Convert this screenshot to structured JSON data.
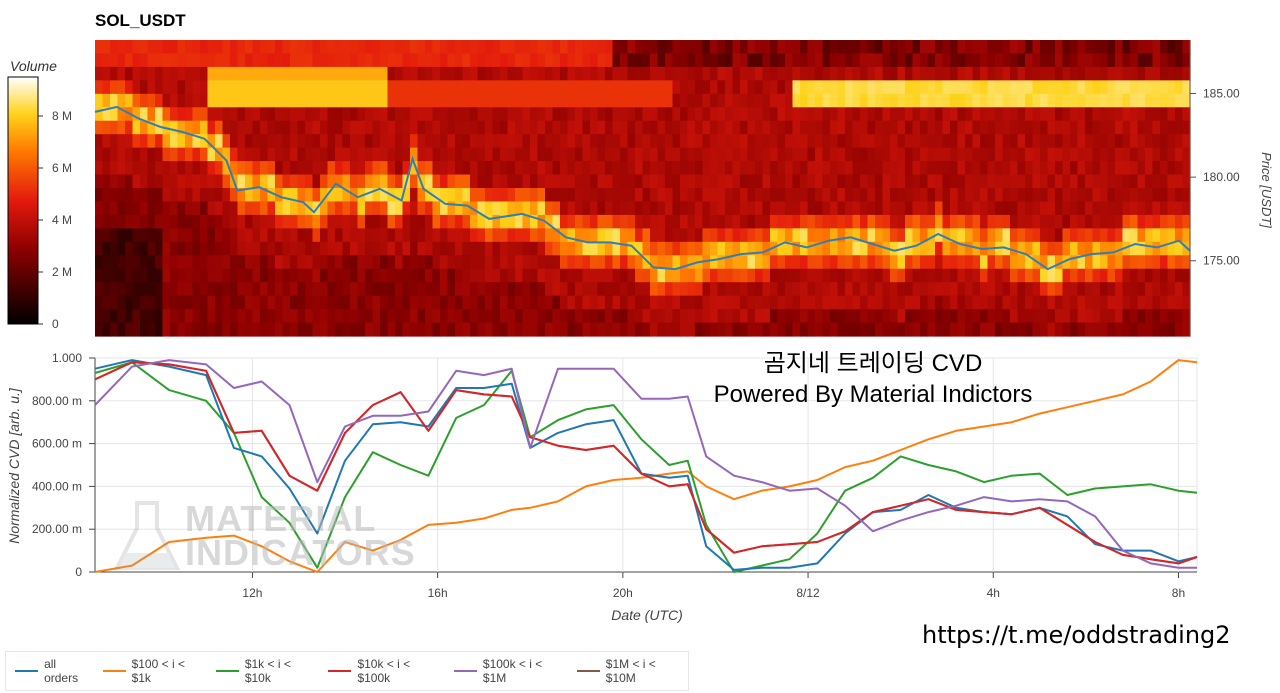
{
  "title": "SOL_USDT",
  "overlay": {
    "line1": "곰지네 트레이딩 CVD",
    "line2": "Powered By Material Indictors"
  },
  "url": "https://t.me/oddstrading2",
  "watermark": [
    "MATERIAL",
    "INDICATORS"
  ],
  "chart_data": [
    {
      "type": "heatmap",
      "title": "SOL_USDT",
      "colorbar": {
        "label": "Volume",
        "ticks": [
          "0",
          "2 M",
          "4 M",
          "6 M",
          "8 M"
        ],
        "range": [
          0,
          9.5
        ]
      },
      "ylabel": "Price [USDT]",
      "yticks": [
        "175.00",
        "180.00",
        "185.00"
      ],
      "ylim": [
        170.5,
        188.2
      ],
      "price_series": {
        "name": "price",
        "color": "#2f7fb5",
        "t": [
          0,
          0.02,
          0.04,
          0.06,
          0.08,
          0.1,
          0.12,
          0.13,
          0.15,
          0.17,
          0.19,
          0.2,
          0.22,
          0.24,
          0.26,
          0.28,
          0.29,
          0.3,
          0.32,
          0.34,
          0.36,
          0.37,
          0.39,
          0.41,
          0.43,
          0.45,
          0.47,
          0.49,
          0.51,
          0.53,
          0.55,
          0.57,
          0.59,
          0.61,
          0.63,
          0.65,
          0.67,
          0.69,
          0.71,
          0.73,
          0.75,
          0.77,
          0.79,
          0.81,
          0.83,
          0.85,
          0.87,
          0.89,
          0.91,
          0.93,
          0.95,
          0.97,
          0.99,
          1.0
        ],
        "price": [
          183.9,
          184.2,
          183.5,
          183.0,
          182.7,
          182.3,
          181.0,
          179.2,
          179.4,
          178.8,
          178.5,
          177.9,
          179.6,
          178.8,
          179.3,
          178.6,
          181.1,
          179.3,
          178.4,
          178.3,
          177.5,
          177.6,
          177.8,
          177.4,
          176.4,
          176.1,
          176.1,
          175.9,
          174.6,
          174.5,
          174.9,
          175.1,
          175.4,
          175.5,
          176.1,
          175.8,
          176.2,
          176.4,
          176.0,
          175.6,
          175.9,
          176.6,
          176.0,
          175.7,
          175.8,
          175.4,
          174.5,
          175.1,
          175.4,
          175.5,
          176.0,
          175.8,
          176.2,
          175.6
        ]
      },
      "cell_values_note": ""
    },
    {
      "type": "line",
      "xlabel": "Date (UTC)",
      "ylabel": "Normalized CVD [arb. u.]",
      "xticks": [
        "12h",
        "16h",
        "20h",
        "8/12",
        "4h",
        "8h"
      ],
      "xtick_hours": [
        12,
        16,
        20,
        24,
        28,
        32
      ],
      "xlim": [
        8.6,
        32.4
      ],
      "ylim": [
        0,
        1.0
      ],
      "yticks": [
        "0",
        "200.00 m",
        "400.00 m",
        "600.00 m",
        "800.00 m",
        "1.000"
      ],
      "ytick_values": [
        0,
        0.2,
        0.4,
        0.6,
        0.8,
        1.0
      ],
      "x": [
        8.6,
        9.4,
        10.2,
        11.0,
        11.6,
        12.2,
        12.8,
        13.4,
        14.0,
        14.6,
        15.2,
        15.8,
        16.4,
        17.0,
        17.6,
        18.0,
        18.6,
        19.2,
        19.8,
        20.4,
        21.0,
        21.4,
        21.8,
        22.4,
        23.0,
        23.6,
        24.2,
        24.8,
        25.4,
        26.0,
        26.6,
        27.2,
        27.8,
        28.4,
        29.0,
        29.6,
        30.2,
        30.8,
        31.4,
        32.0,
        32.4
      ],
      "series": [
        {
          "name": "all orders",
          "color": "#1f77b4",
          "values": [
            0.95,
            0.99,
            0.96,
            0.92,
            0.58,
            0.54,
            0.39,
            0.18,
            0.52,
            0.69,
            0.7,
            0.68,
            0.86,
            0.86,
            0.88,
            0.58,
            0.65,
            0.69,
            0.71,
            0.46,
            0.44,
            0.45,
            0.12,
            0.01,
            0.02,
            0.02,
            0.04,
            0.18,
            0.28,
            0.29,
            0.36,
            0.3,
            0.28,
            0.27,
            0.3,
            0.26,
            0.13,
            0.1,
            0.1,
            0.05,
            0.07
          ]
        },
        {
          "name": "$100 < i < $1k",
          "color": "#ff7f0e",
          "values": [
            0.0,
            0.03,
            0.14,
            0.16,
            0.17,
            0.12,
            0.05,
            0.0,
            0.14,
            0.1,
            0.15,
            0.22,
            0.23,
            0.25,
            0.29,
            0.3,
            0.33,
            0.4,
            0.43,
            0.44,
            0.46,
            0.47,
            0.4,
            0.34,
            0.38,
            0.4,
            0.43,
            0.49,
            0.52,
            0.57,
            0.62,
            0.66,
            0.68,
            0.7,
            0.74,
            0.77,
            0.8,
            0.83,
            0.89,
            0.99,
            0.98
          ]
        },
        {
          "name": "$1k < i < $10k",
          "color": "#2ca02c",
          "values": [
            0.93,
            0.98,
            0.85,
            0.8,
            0.65,
            0.35,
            0.23,
            0.02,
            0.35,
            0.56,
            0.5,
            0.45,
            0.72,
            0.78,
            0.94,
            0.63,
            0.71,
            0.76,
            0.78,
            0.62,
            0.5,
            0.52,
            0.22,
            0.0,
            0.03,
            0.06,
            0.18,
            0.38,
            0.44,
            0.54,
            0.5,
            0.47,
            0.42,
            0.45,
            0.46,
            0.36,
            0.39,
            0.4,
            0.41,
            0.38,
            0.37
          ]
        },
        {
          "name": "$10k < i < $100k",
          "color": "#d62728",
          "values": [
            0.9,
            0.98,
            0.97,
            0.94,
            0.65,
            0.66,
            0.45,
            0.38,
            0.65,
            0.78,
            0.84,
            0.66,
            0.85,
            0.83,
            0.82,
            0.63,
            0.59,
            0.57,
            0.59,
            0.46,
            0.4,
            0.41,
            0.2,
            0.09,
            0.12,
            0.13,
            0.14,
            0.19,
            0.28,
            0.31,
            0.34,
            0.29,
            0.28,
            0.27,
            0.3,
            0.22,
            0.14,
            0.08,
            0.06,
            0.04,
            0.07
          ]
        },
        {
          "name": "$100k < i < $1M",
          "color": "#9467bd",
          "values": [
            0.78,
            0.96,
            0.99,
            0.97,
            0.86,
            0.89,
            0.78,
            0.42,
            0.68,
            0.73,
            0.73,
            0.75,
            0.94,
            0.92,
            0.95,
            0.58,
            0.95,
            0.95,
            0.95,
            0.81,
            0.81,
            0.82,
            0.54,
            0.45,
            0.42,
            0.38,
            0.39,
            0.31,
            0.19,
            0.24,
            0.28,
            0.31,
            0.35,
            0.33,
            0.34,
            0.33,
            0.26,
            0.1,
            0.04,
            0.02,
            0.02
          ]
        },
        {
          "name": "$1M < i < $10M",
          "color": "#8c564b",
          "values": [
            0.9,
            0.98,
            0.97,
            0.94,
            0.65,
            0.66,
            0.45,
            0.38,
            0.65,
            0.78,
            0.84,
            0.66,
            0.85,
            0.83,
            0.82,
            0.63,
            0.59,
            0.57,
            0.59,
            0.46,
            0.4,
            0.41,
            0.2,
            0.09,
            0.12,
            0.13,
            0.14,
            0.19,
            0.28,
            0.31,
            0.34,
            0.29,
            0.28,
            0.27,
            0.3,
            0.22,
            0.14,
            0.08,
            0.06,
            0.04,
            0.07
          ]
        }
      ]
    }
  ]
}
